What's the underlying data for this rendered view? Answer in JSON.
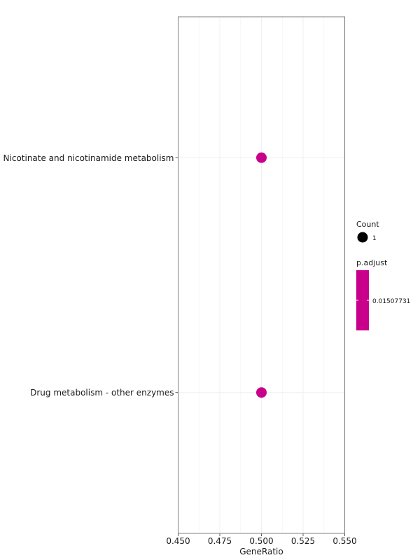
{
  "chart_data": {
    "type": "scatter",
    "title": "",
    "xlabel": "GeneRatio",
    "ylabel": "",
    "xlim": [
      0.45,
      0.55
    ],
    "x_ticks": [
      "0.450",
      "0.475",
      "0.500",
      "0.525",
      "0.550"
    ],
    "x_tick_values": [
      0.45,
      0.475,
      0.5,
      0.525,
      0.55
    ],
    "categories": [
      "Nicotinate and nicotinamide metabolism",
      "Drug metabolism - other enzymes"
    ],
    "points": [
      {
        "category": "Nicotinate and nicotinamide metabolism",
        "x": 0.5,
        "count": 1,
        "p_adjust": 0.01507731
      },
      {
        "category": "Drug metabolism - other enzymes",
        "x": 0.5,
        "count": 1,
        "p_adjust": 0.01507731
      }
    ],
    "grid": true,
    "legend_position": "right",
    "point_color": "#C8008C",
    "legend": {
      "size_title": "Count",
      "size_label": "1",
      "color_title": "p.adjust",
      "color_label": "0.01507731",
      "color": "#C8008C"
    }
  }
}
